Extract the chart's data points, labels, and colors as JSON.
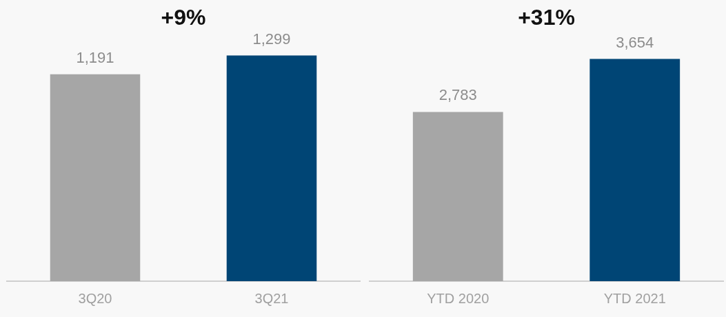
{
  "chart_data": [
    {
      "type": "bar",
      "categories": [
        "3Q20",
        "3Q21"
      ],
      "values": [
        1191,
        1299
      ],
      "value_labels": [
        "1,191",
        "1,299"
      ],
      "colors": [
        "#a6a6a6",
        "#004575"
      ],
      "tick_labels": "x",
      "grid": false,
      "annotations": [
        "+9%"
      ]
    },
    {
      "type": "bar",
      "categories": [
        "YTD 2020",
        "YTD 2021"
      ],
      "values": [
        2783,
        3654
      ],
      "value_labels": [
        "2,783",
        "3,654"
      ],
      "colors": [
        "#a6a6a6",
        "#004575"
      ],
      "tick_labels": "x",
      "grid": false,
      "annotations": [
        "+31%"
      ]
    }
  ]
}
